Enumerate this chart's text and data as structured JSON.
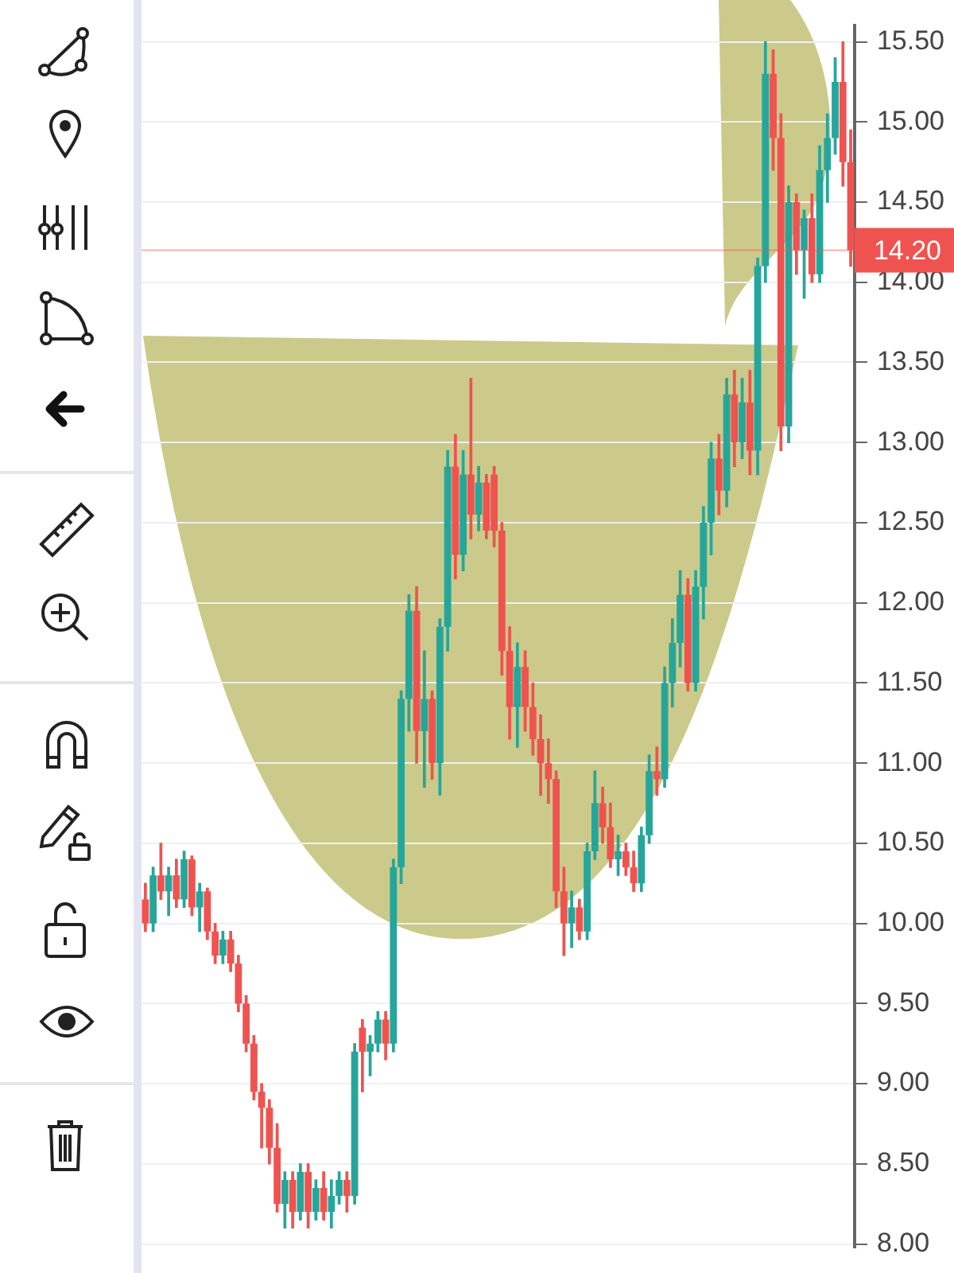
{
  "chart_data": {
    "type": "candlestick",
    "categories": [
      null,
      null,
      null,
      null,
      null,
      null,
      null,
      null,
      null,
      null,
      null,
      null,
      null,
      null,
      null,
      null,
      null,
      null,
      null,
      null,
      null,
      null,
      null,
      null,
      null,
      null,
      null,
      null,
      null,
      null,
      null,
      null,
      null,
      null,
      null,
      null,
      null,
      null,
      null,
      null,
      null,
      null,
      null,
      null,
      null,
      null,
      null,
      null,
      null,
      null,
      null,
      null,
      null,
      null,
      null,
      null,
      null,
      null,
      null,
      null,
      null,
      null,
      null,
      null,
      null,
      null,
      null,
      null,
      null,
      null,
      null,
      null,
      null,
      null,
      null,
      null,
      null,
      null,
      null,
      null,
      null,
      null,
      null,
      null,
      null,
      null,
      null,
      null,
      null,
      null,
      null,
      null
    ],
    "ohlc": [
      [
        10.15,
        10.25,
        9.95,
        10.0
      ],
      [
        10.0,
        10.35,
        9.95,
        10.3
      ],
      [
        10.3,
        10.5,
        10.15,
        10.2
      ],
      [
        10.2,
        10.35,
        10.05,
        10.3
      ],
      [
        10.3,
        10.4,
        10.1,
        10.15
      ],
      [
        10.15,
        10.45,
        10.1,
        10.4
      ],
      [
        10.4,
        10.42,
        10.05,
        10.1
      ],
      [
        10.1,
        10.25,
        9.95,
        10.2
      ],
      [
        10.2,
        10.22,
        9.9,
        9.95
      ],
      [
        9.95,
        10.0,
        9.75,
        9.8
      ],
      [
        9.8,
        9.95,
        9.75,
        9.9
      ],
      [
        9.9,
        9.95,
        9.7,
        9.75
      ],
      [
        9.75,
        9.8,
        9.45,
        9.5
      ],
      [
        9.5,
        9.55,
        9.2,
        9.25
      ],
      [
        9.25,
        9.3,
        8.9,
        8.95
      ],
      [
        8.95,
        9.0,
        8.6,
        8.85
      ],
      [
        8.85,
        8.9,
        8.5,
        8.6
      ],
      [
        8.6,
        8.75,
        8.2,
        8.25
      ],
      [
        8.25,
        8.45,
        8.1,
        8.4
      ],
      [
        8.4,
        8.45,
        8.1,
        8.2
      ],
      [
        8.2,
        8.5,
        8.15,
        8.45
      ],
      [
        8.45,
        8.5,
        8.1,
        8.2
      ],
      [
        8.2,
        8.4,
        8.15,
        8.35
      ],
      [
        8.35,
        8.45,
        8.15,
        8.2
      ],
      [
        8.2,
        8.4,
        8.1,
        8.3
      ],
      [
        8.3,
        8.45,
        8.25,
        8.4
      ],
      [
        8.4,
        8.45,
        8.2,
        8.3
      ],
      [
        8.3,
        9.25,
        8.25,
        9.2
      ],
      [
        9.35,
        9.4,
        8.95,
        9.2
      ],
      [
        9.2,
        9.3,
        9.05,
        9.25
      ],
      [
        9.25,
        9.45,
        9.2,
        9.4
      ],
      [
        9.4,
        9.45,
        9.15,
        9.25
      ],
      [
        9.25,
        10.4,
        9.2,
        10.35
      ],
      [
        10.35,
        11.45,
        10.25,
        11.4
      ],
      [
        11.4,
        12.05,
        11.2,
        11.95
      ],
      [
        11.95,
        12.1,
        11.0,
        11.2
      ],
      [
        11.2,
        11.7,
        10.85,
        11.4
      ],
      [
        11.4,
        11.45,
        10.9,
        11.0
      ],
      [
        11.0,
        11.9,
        10.8,
        11.85
      ],
      [
        11.85,
        12.95,
        11.7,
        12.85
      ],
      [
        12.85,
        13.05,
        12.15,
        12.3
      ],
      [
        12.3,
        12.95,
        12.2,
        12.8
      ],
      [
        12.8,
        13.4,
        12.4,
        12.55
      ],
      [
        12.55,
        12.85,
        12.45,
        12.75
      ],
      [
        12.75,
        12.8,
        12.4,
        12.45
      ],
      [
        12.8,
        12.85,
        12.35,
        12.45
      ],
      [
        12.45,
        12.5,
        11.55,
        11.7
      ],
      [
        11.7,
        11.85,
        11.15,
        11.35
      ],
      [
        11.35,
        11.75,
        11.1,
        11.6
      ],
      [
        11.6,
        11.7,
        11.2,
        11.35
      ],
      [
        11.35,
        11.5,
        11.05,
        11.15
      ],
      [
        11.15,
        11.3,
        10.8,
        11.0
      ],
      [
        11.0,
        11.15,
        10.75,
        10.9
      ],
      [
        10.9,
        10.95,
        10.1,
        10.2
      ],
      [
        10.2,
        10.35,
        9.8,
        10.0
      ],
      [
        10.0,
        10.2,
        9.85,
        10.1
      ],
      [
        10.1,
        10.15,
        9.9,
        9.95
      ],
      [
        9.95,
        10.5,
        9.9,
        10.45
      ],
      [
        10.45,
        10.95,
        10.4,
        10.75
      ],
      [
        10.75,
        10.85,
        10.5,
        10.6
      ],
      [
        10.6,
        10.75,
        10.35,
        10.4
      ],
      [
        10.4,
        10.55,
        10.3,
        10.45
      ],
      [
        10.45,
        10.5,
        10.3,
        10.35
      ],
      [
        10.35,
        10.45,
        10.2,
        10.25
      ],
      [
        10.25,
        10.6,
        10.2,
        10.55
      ],
      [
        10.55,
        11.05,
        10.5,
        10.95
      ],
      [
        10.95,
        11.1,
        10.8,
        10.9
      ],
      [
        10.9,
        11.6,
        10.85,
        11.5
      ],
      [
        11.5,
        11.9,
        11.35,
        11.75
      ],
      [
        11.75,
        12.2,
        11.6,
        12.05
      ],
      [
        12.05,
        12.15,
        11.45,
        11.5
      ],
      [
        11.5,
        12.2,
        11.45,
        12.1
      ],
      [
        12.1,
        12.6,
        11.9,
        12.5
      ],
      [
        12.5,
        13.0,
        12.3,
        12.9
      ],
      [
        12.9,
        13.05,
        12.55,
        12.7
      ],
      [
        12.7,
        13.4,
        12.6,
        13.3
      ],
      [
        13.3,
        13.45,
        12.85,
        13.0
      ],
      [
        13.0,
        13.4,
        12.9,
        13.25
      ],
      [
        13.25,
        13.45,
        12.8,
        12.95
      ],
      [
        12.95,
        14.15,
        12.8,
        14.1
      ],
      [
        14.1,
        15.5,
        14.0,
        15.3
      ],
      [
        15.3,
        15.45,
        14.7,
        14.9
      ],
      [
        14.9,
        15.05,
        12.95,
        13.1
      ],
      [
        13.1,
        14.6,
        13.0,
        14.5
      ],
      [
        14.5,
        14.55,
        14.05,
        14.2
      ],
      [
        14.2,
        14.45,
        13.9,
        14.4
      ],
      [
        14.4,
        14.55,
        14.0,
        14.05
      ],
      [
        14.05,
        14.85,
        14.0,
        14.7
      ],
      [
        14.7,
        15.05,
        14.5,
        14.9
      ],
      [
        14.9,
        15.4,
        14.8,
        15.25
      ],
      [
        15.25,
        15.5,
        14.6,
        14.75
      ],
      [
        14.75,
        14.95,
        14.1,
        14.2
      ]
    ],
    "ylim": [
      7.98,
      15.6
    ],
    "yticks": [
      {
        "value": 8,
        "label": "8.00"
      },
      {
        "value": 8.5,
        "label": "8.50"
      },
      {
        "value": 9,
        "label": "9.00"
      },
      {
        "value": 9.5,
        "label": "9.50"
      },
      {
        "value": 10,
        "label": "10.00"
      },
      {
        "value": 10.5,
        "label": "10.50"
      },
      {
        "value": 11,
        "label": "11.00"
      },
      {
        "value": 11.5,
        "label": "11.50"
      },
      {
        "value": 12,
        "label": "12.00"
      },
      {
        "value": 12.5,
        "label": "12.50"
      },
      {
        "value": 13,
        "label": "13.00"
      },
      {
        "value": 13.5,
        "label": "13.50"
      },
      {
        "value": 14,
        "label": "14.00"
      },
      {
        "value": 14.5,
        "label": "14.50"
      },
      {
        "value": 15,
        "label": "15.00"
      },
      {
        "value": 15.5,
        "label": "15.50"
      }
    ],
    "ref_lines": [
      {
        "axis": "y",
        "value": 14.2,
        "label": "14.20",
        "color": "#ef5350"
      }
    ],
    "grid": "y",
    "tick_labels": "y"
  }
}
